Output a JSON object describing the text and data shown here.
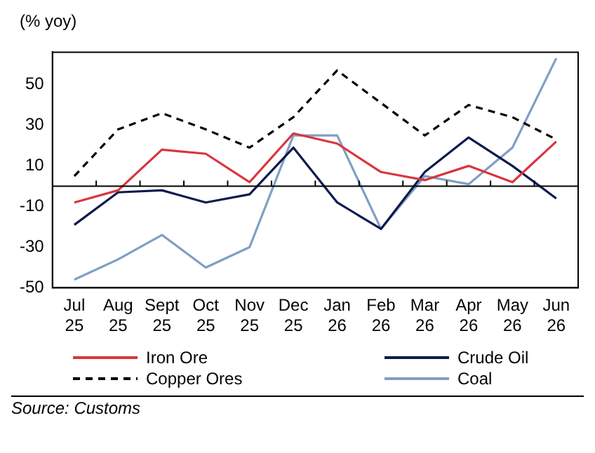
{
  "chart_data": {
    "type": "line",
    "ylabel": "(% yoy)",
    "categories": [
      "Jul 25",
      "Aug 25",
      "Sept 25",
      "Oct 25",
      "Nov 25",
      "Dec 25",
      "Jan 26",
      "Feb 26",
      "Mar 26",
      "Apr 26",
      "May 26",
      "Jun 26"
    ],
    "series": [
      {
        "name": "Iron Ore",
        "color": "#d9363e",
        "values": [
          -8,
          -2,
          18,
          16,
          2,
          26,
          21,
          7,
          3,
          10,
          2,
          22
        ]
      },
      {
        "name": "Crude Oil",
        "color": "#0d1a4f",
        "values": [
          -19,
          -3,
          -2,
          -8,
          -4,
          19,
          -8,
          -21,
          7,
          24,
          10,
          -6
        ]
      },
      {
        "name": "Copper Ores",
        "color": "#000000",
        "line_style": "dashed",
        "values": [
          5,
          28,
          36,
          28,
          19,
          34,
          57,
          41,
          25,
          40,
          34,
          23
        ]
      },
      {
        "name": "Coal",
        "color": "#7f9fc4",
        "values": [
          -46,
          -36,
          -24,
          -40,
          -30,
          25,
          25,
          -21,
          5,
          1,
          19,
          63
        ]
      }
    ],
    "ylim": [
      -50,
      66
    ],
    "yticks": [
      -50,
      -30,
      -10,
      10,
      30,
      50
    ],
    "grid": false,
    "legend": "bottom",
    "marker": "none",
    "line_style": "solid",
    "ref_lines": [
      {
        "axis": "y",
        "value": 0,
        "color": "#000000"
      }
    ],
    "annotations": [
      "Source: Customs"
    ]
  }
}
